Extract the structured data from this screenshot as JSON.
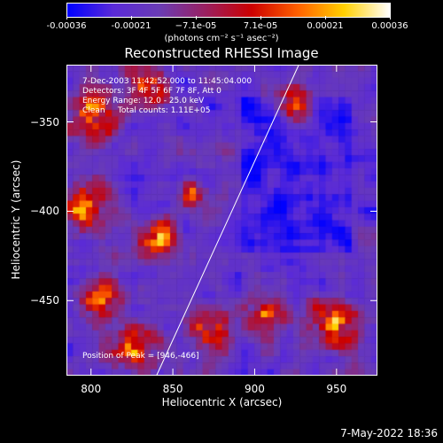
{
  "colorbar": {
    "tick_labels": [
      "-0.00036",
      "-0.00021",
      "−7.1e-05",
      "7.1e-05",
      "0.00021",
      "0.00036"
    ],
    "units_label": "(photons cm⁻² s⁻¹ asec⁻²)",
    "colors": [
      "#0000ff",
      "#5a2ad8",
      "#6a3cb4",
      "#9a2060",
      "#cc0000",
      "#ff6000",
      "#ffd000",
      "#ffffff"
    ]
  },
  "title": "Reconstructed RHESSI Image",
  "info": {
    "time_range": "7-Dec-2003 11:42:52.000 to 11:45:04.000",
    "detectors": "Detectors: 3F 4F 5F 6F 7F 8F, Att 0",
    "energy_range": "Energy Range: 12.0 - 25.0 keV",
    "method_counts": "Clean     Total counts: 1.11E+05",
    "peak": "Position of Peak = [946,-466]"
  },
  "axes": {
    "xlabel": "Heliocentric X (arcsec)",
    "ylabel": "Heliocentric Y (arcsec)",
    "xlim": [
      785,
      975
    ],
    "ylim": [
      -492,
      -318
    ],
    "xticks": [
      "800",
      "850",
      "900",
      "950"
    ],
    "yticks": [
      "-350",
      "-400",
      "-450"
    ]
  },
  "limb": {
    "from": [
      840,
      -492
    ],
    "to": [
      927,
      -318
    ]
  },
  "datestamp": "7-May-2022 18:36"
}
